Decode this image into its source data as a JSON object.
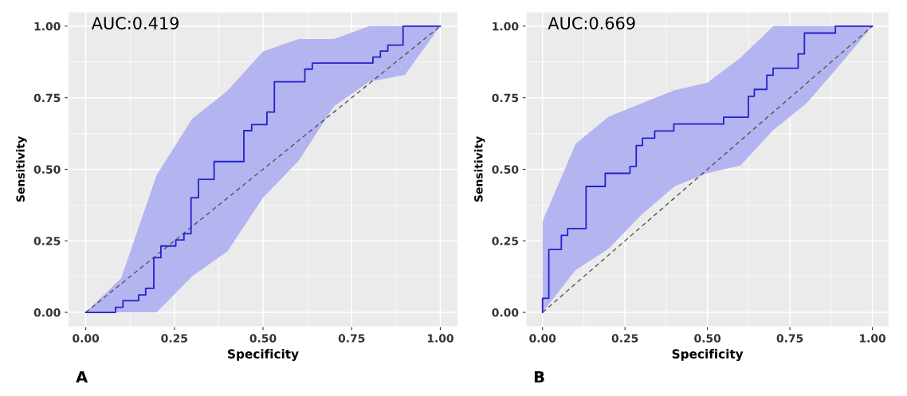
{
  "chart_data": [
    {
      "type": "step",
      "xlabel": "Specificity",
      "ylabel": "Sensitivity",
      "annotations": [
        "AUC:0.419",
        "A"
      ],
      "xlim": [
        -0.05,
        1.05
      ],
      "ylim": [
        -0.05,
        1.05
      ],
      "xticks": [
        {
          "value": 0,
          "label": "0.00"
        },
        {
          "value": 0.25,
          "label": "0.25"
        },
        {
          "value": 0.5,
          "label": "0.50"
        },
        {
          "value": 0.75,
          "label": "0.75"
        },
        {
          "value": 1,
          "label": "1.00"
        }
      ],
      "yticks": [
        {
          "value": 0,
          "label": "0.00"
        },
        {
          "value": 0.25,
          "label": "0.25"
        },
        {
          "value": 0.5,
          "label": "0.50"
        },
        {
          "value": 0.75,
          "label": "0.75"
        },
        {
          "value": 1,
          "label": "1.00"
        }
      ],
      "grid": true,
      "series": [
        {
          "type": "line",
          "color": "#555555",
          "line_style": "dashed",
          "x": [
            0,
            0.1,
            0.2,
            0.3,
            0.4,
            0.5,
            0.6,
            0.7,
            0.8,
            0.9,
            1.0
          ],
          "values": [
            0,
            0.1,
            0.2,
            0.3,
            0.4,
            0.5,
            0.6,
            0.7,
            0.8,
            0.9,
            1.0
          ],
          "lower": [
            0,
            0,
            0,
            0.126,
            0.214,
            0.401,
            0.529,
            0.72,
            0.806,
            0.83,
            1.0
          ],
          "upper": [
            0,
            0.12,
            0.48,
            0.676,
            0.775,
            0.912,
            0.955,
            0.955,
            1.0,
            1.0,
            1.0
          ]
        },
        {
          "color": "#2222cc",
          "x": [
            0,
            0.084,
            0.105,
            0.149,
            0.169,
            0.192,
            0.212,
            0.254,
            0.277,
            0.297,
            0.318,
            0.362,
            0.446,
            0.468,
            0.511,
            0.532,
            0.618,
            0.639,
            0.81,
            0.831,
            0.852,
            0.895,
            1.0
          ],
          "values": [
            0,
            0.018,
            0.041,
            0.061,
            0.084,
            0.191,
            0.232,
            0.253,
            0.275,
            0.401,
            0.465,
            0.527,
            0.635,
            0.656,
            0.7,
            0.806,
            0.85,
            0.871,
            0.892,
            0.913,
            0.934,
            1.0,
            1.0
          ]
        }
      ]
    },
    {
      "type": "step",
      "xlabel": "Specificity",
      "ylabel": "Sensitivity",
      "annotations": [
        "AUC:0.669",
        "B"
      ],
      "xlim": [
        -0.05,
        1.05
      ],
      "ylim": [
        -0.05,
        1.05
      ],
      "xticks": [
        {
          "value": 0,
          "label": "0.00"
        },
        {
          "value": 0.25,
          "label": "0.25"
        },
        {
          "value": 0.5,
          "label": "0.50"
        },
        {
          "value": 0.75,
          "label": "0.75"
        },
        {
          "value": 1,
          "label": "1.00"
        }
      ],
      "yticks": [
        {
          "value": 0,
          "label": "0.00"
        },
        {
          "value": 0.25,
          "label": "0.25"
        },
        {
          "value": 0.5,
          "label": "0.50"
        },
        {
          "value": 0.75,
          "label": "0.75"
        },
        {
          "value": 1,
          "label": "1.00"
        }
      ],
      "grid": true,
      "series": [
        {
          "type": "line",
          "color": "#555555",
          "line_style": "dashed",
          "x": [
            0,
            0.1,
            0.2,
            0.3,
            0.4,
            0.5,
            0.6,
            0.7,
            0.8,
            0.9,
            1.0
          ],
          "values": [
            0,
            0.1,
            0.2,
            0.3,
            0.4,
            0.5,
            0.6,
            0.7,
            0.8,
            0.9,
            1.0
          ],
          "lower": [
            0,
            0.148,
            0.222,
            0.341,
            0.44,
            0.487,
            0.513,
            0.638,
            0.73,
            0.863,
            1.0
          ],
          "upper": [
            0.318,
            0.588,
            0.684,
            0.73,
            0.776,
            0.803,
            0.89,
            1.0,
            1.0,
            1.0,
            1.0
          ]
        },
        {
          "color": "#2222cc",
          "x": [
            0,
            0,
            0.019,
            0.057,
            0.076,
            0.132,
            0.19,
            0.265,
            0.284,
            0.303,
            0.34,
            0.398,
            0.549,
            0.624,
            0.642,
            0.68,
            0.699,
            0.775,
            0.794,
            0.888,
            1.0
          ],
          "values": [
            0,
            0.049,
            0.22,
            0.269,
            0.293,
            0.44,
            0.486,
            0.51,
            0.583,
            0.609,
            0.634,
            0.658,
            0.682,
            0.755,
            0.779,
            0.829,
            0.853,
            0.903,
            0.976,
            1.0,
            1.0
          ]
        }
      ]
    }
  ]
}
